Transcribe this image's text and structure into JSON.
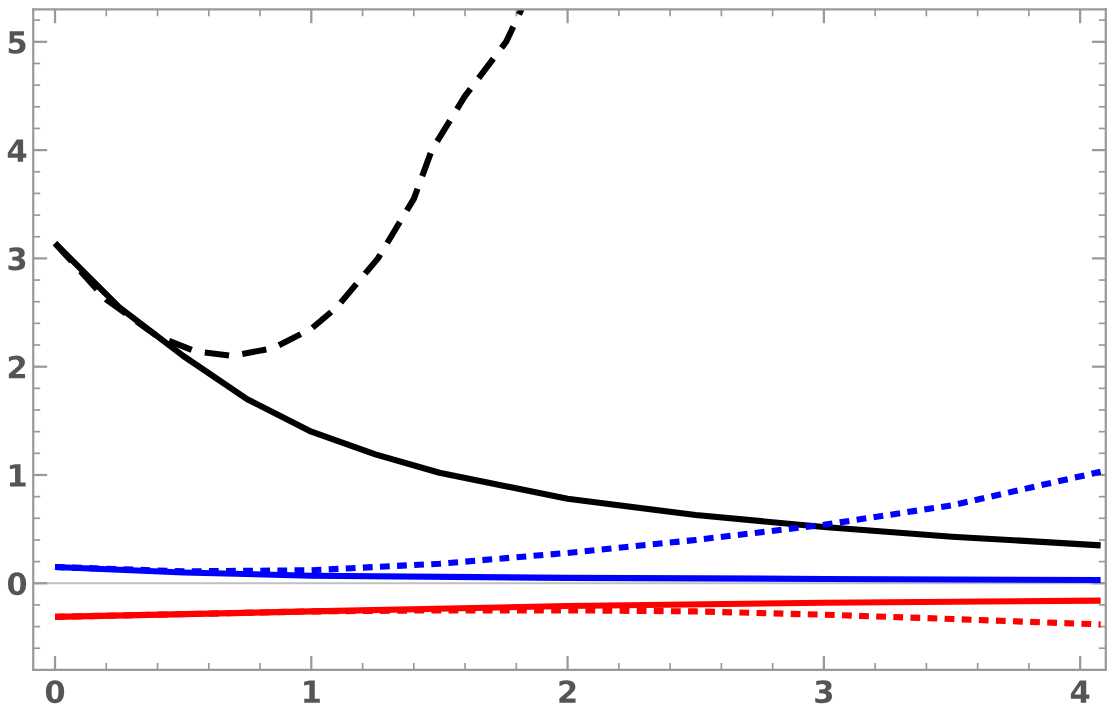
{
  "chart_data": {
    "type": "line",
    "xlim": [
      -0.085,
      4.1
    ],
    "ylim": [
      -0.8,
      5.3
    ],
    "xticks": [
      0,
      1,
      2,
      3,
      4
    ],
    "yticks": [
      0,
      1,
      2,
      3,
      4,
      5
    ],
    "grid": false,
    "legend": false,
    "marker": "none",
    "ref_lines": [
      {
        "axis": "y",
        "value": 0,
        "color": "#c0c0c0",
        "line_style": "solid"
      }
    ],
    "series": [
      {
        "color": "#000000",
        "line_style": "solid",
        "x": [
          0,
          0.25,
          0.5,
          0.75,
          1,
          1.25,
          1.5,
          2,
          2.5,
          3,
          3.5,
          4.08
        ],
        "values": [
          3.14,
          2.55,
          2.1,
          1.7,
          1.4,
          1.19,
          1.02,
          0.78,
          0.63,
          0.52,
          0.43,
          0.35
        ]
      },
      {
        "color": "#000000",
        "line_style": "dashed",
        "x": [
          0,
          0.2,
          0.4,
          0.55,
          0.69,
          0.85,
          1.0,
          1.1,
          1.26,
          1.4,
          1.47,
          1.6,
          1.76,
          1.82
        ],
        "values": [
          3.14,
          2.62,
          2.28,
          2.14,
          2.1,
          2.17,
          2.35,
          2.55,
          3.0,
          3.55,
          4.0,
          4.5,
          5.0,
          5.3
        ]
      },
      {
        "color": "#0000ff",
        "line_style": "solid",
        "x": [
          0,
          0.5,
          1,
          2,
          3,
          4.08
        ],
        "values": [
          0.15,
          0.1,
          0.07,
          0.05,
          0.04,
          0.03
        ]
      },
      {
        "color": "#0000ff",
        "line_style": "dotted",
        "x": [
          0,
          0.5,
          1,
          1.5,
          2,
          2.5,
          3,
          3.5,
          4.08
        ],
        "values": [
          0.15,
          0.11,
          0.12,
          0.18,
          0.28,
          0.4,
          0.54,
          0.72,
          1.03
        ]
      },
      {
        "color": "#ff0000",
        "line_style": "solid",
        "x": [
          0,
          1,
          2,
          3,
          4.08
        ],
        "values": [
          -0.31,
          -0.26,
          -0.21,
          -0.18,
          -0.16
        ]
      },
      {
        "color": "#ff0000",
        "line_style": "dotted",
        "x": [
          0,
          1,
          1.5,
          2,
          2.5,
          3,
          3.5,
          4.08
        ],
        "values": [
          -0.31,
          -0.26,
          -0.25,
          -0.25,
          -0.26,
          -0.29,
          -0.33,
          -0.38
        ]
      }
    ]
  }
}
